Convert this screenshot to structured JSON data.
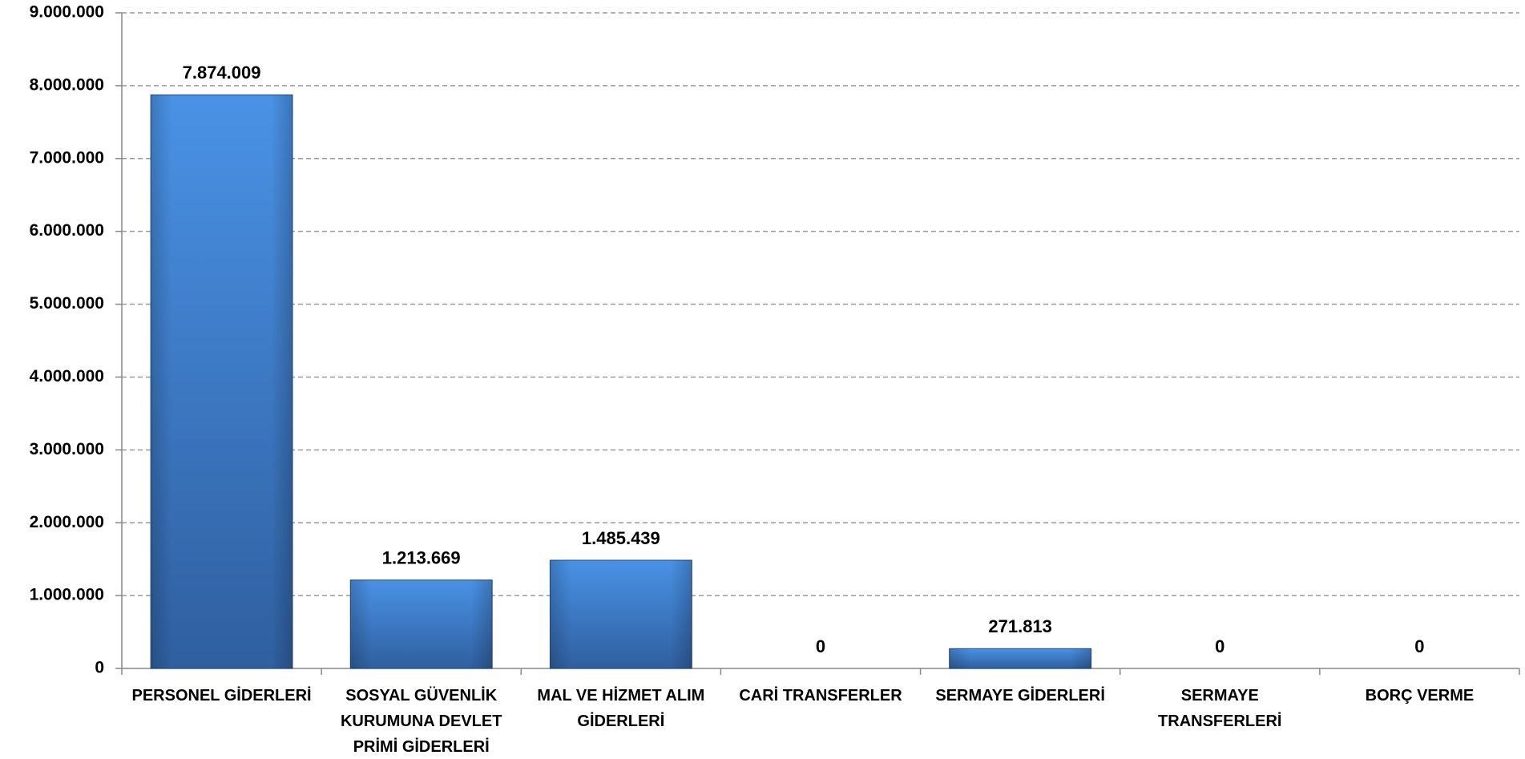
{
  "chart_data": {
    "type": "bar",
    "categories": [
      "PERSONEL GİDERLERİ",
      "SOSYAL GÜVENLİK KURUMUNA DEVLET PRİMİ GİDERLERİ",
      "MAL VE HİZMET ALIM GİDERLERİ",
      "CARİ TRANSFERLER",
      "SERMAYE GİDERLERİ",
      "SERMAYE TRANSFERLERİ",
      "BORÇ VERME"
    ],
    "values": [
      7874009,
      1213669,
      1485439,
      0,
      271813,
      0,
      0
    ],
    "value_labels": [
      "7.874.009",
      "1.213.669",
      "1.485.439",
      "0",
      "271.813",
      "0",
      "0"
    ],
    "color": "#3d7fd0",
    "ylim": [
      0,
      9000000
    ],
    "yticks": [
      0,
      {
        "value": 1000000,
        "label": "1.000.000"
      },
      {
        "value": 2000000,
        "label": "2.000.000"
      },
      {
        "value": 3000000,
        "label": "3.000.000"
      },
      {
        "value": 4000000,
        "label": "4.000.000"
      },
      {
        "value": 5000000,
        "label": "5.000.000"
      },
      {
        "value": 6000000,
        "label": "6.000.000"
      },
      {
        "value": 7000000,
        "label": "7.000.000"
      },
      {
        "value": 8000000,
        "label": "8.000.000"
      },
      {
        "value": 9000000,
        "label": "9.000.000"
      }
    ],
    "grid": true
  }
}
